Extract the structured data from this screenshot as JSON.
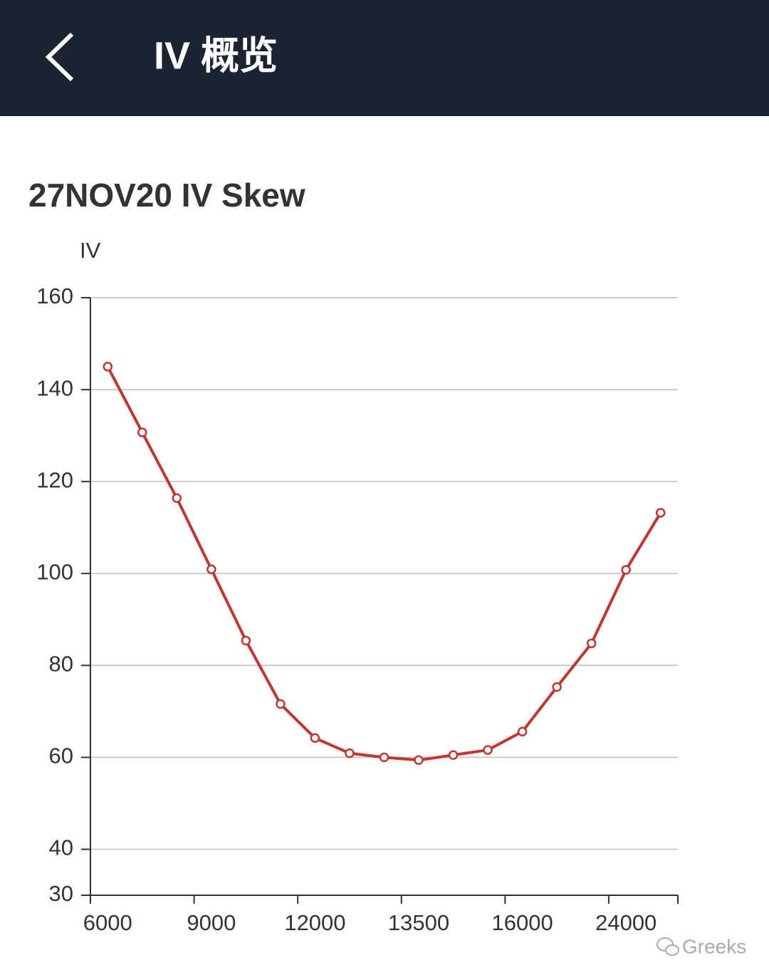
{
  "header": {
    "title": "IV 概览"
  },
  "chart_data": {
    "type": "line",
    "title": "27NOV20 IV Skew",
    "y_label": "IV",
    "categories": [
      "6000",
      null,
      null,
      "9000",
      null,
      null,
      "12000",
      null,
      null,
      "13500",
      null,
      null,
      "16000",
      null,
      null,
      "24000",
      null
    ],
    "series": [
      {
        "name": "IV",
        "color": "#c23531",
        "values": [
          145.0,
          130.7,
          116.4,
          100.9,
          85.4,
          71.6,
          64.2,
          60.9,
          60.0,
          59.4,
          60.5,
          61.6,
          65.6,
          75.3,
          84.8,
          100.8,
          113.2
        ]
      }
    ],
    "ylim": [
      30,
      160
    ],
    "yticks": [
      30,
      40,
      60,
      80,
      100,
      120,
      140,
      160
    ],
    "grid": true
  },
  "watermark": "Greeks"
}
